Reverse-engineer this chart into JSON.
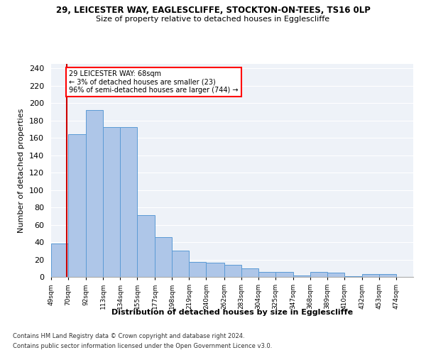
{
  "title1": "29, LEICESTER WAY, EAGLESCLIFFE, STOCKTON-ON-TEES, TS16 0LP",
  "title2": "Size of property relative to detached houses in Egglescliffe",
  "xlabel": "Distribution of detached houses by size in Egglescliffe",
  "ylabel": "Number of detached properties",
  "footer1": "Contains HM Land Registry data © Crown copyright and database right 2024.",
  "footer2": "Contains public sector information licensed under the Open Government Licence v3.0.",
  "annotation_line1": "29 LEICESTER WAY: 68sqm",
  "annotation_line2": "← 3% of detached houses are smaller (23)",
  "annotation_line3": "96% of semi-detached houses are larger (744) →",
  "property_size": 68,
  "bar_left_edges": [
    49,
    70,
    92,
    113,
    134,
    155,
    177,
    198,
    219,
    240,
    262,
    283,
    304,
    325,
    347,
    368,
    389,
    410,
    432,
    453
  ],
  "bar_widths": [
    21,
    22,
    21,
    21,
    21,
    22,
    21,
    21,
    21,
    22,
    21,
    21,
    21,
    22,
    21,
    21,
    21,
    22,
    21,
    21
  ],
  "bar_heights": [
    38,
    164,
    192,
    172,
    172,
    71,
    46,
    30,
    17,
    16,
    14,
    10,
    6,
    6,
    2,
    6,
    5,
    1,
    3,
    3
  ],
  "bar_color": "#aec6e8",
  "bar_edge_color": "#5b9bd5",
  "line_color": "#cc0000",
  "bg_color": "#eef2f8",
  "ylim": [
    0,
    245
  ],
  "yticks": [
    0,
    20,
    40,
    60,
    80,
    100,
    120,
    140,
    160,
    180,
    200,
    220,
    240
  ],
  "xtick_labels": [
    "49sqm",
    "70sqm",
    "92sqm",
    "113sqm",
    "134sqm",
    "155sqm",
    "177sqm",
    "198sqm",
    "219sqm",
    "240sqm",
    "262sqm",
    "283sqm",
    "304sqm",
    "325sqm",
    "347sqm",
    "368sqm",
    "389sqm",
    "410sqm",
    "432sqm",
    "453sqm",
    "474sqm"
  ]
}
